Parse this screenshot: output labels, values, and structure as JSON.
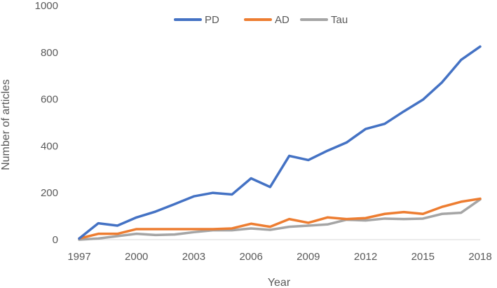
{
  "chart_data": {
    "type": "line",
    "title": "",
    "xlabel": "Year",
    "ylabel": "Number of articles",
    "xlim": [
      1997,
      2018
    ],
    "ylim": [
      0,
      1000
    ],
    "x_ticks": [
      1997,
      2000,
      2003,
      2006,
      2009,
      2012,
      2015,
      2018
    ],
    "y_ticks": [
      0,
      200,
      400,
      600,
      800,
      1000
    ],
    "x": [
      1997,
      1998,
      1999,
      2000,
      2001,
      2002,
      2003,
      2004,
      2005,
      2006,
      2007,
      2008,
      2009,
      2010,
      2011,
      2012,
      2013,
      2014,
      2015,
      2016,
      2017,
      2018
    ],
    "grid": false,
    "legend_position": "top",
    "series": [
      {
        "name": "PD",
        "color": "#4472C4",
        "values": [
          5,
          70,
          60,
          95,
          120,
          152,
          185,
          200,
          193,
          262,
          225,
          358,
          340,
          380,
          415,
          473,
          495,
          548,
          598,
          672,
          768,
          825
        ]
      },
      {
        "name": "AD",
        "color": "#ED7D31",
        "values": [
          5,
          25,
          25,
          45,
          45,
          45,
          45,
          45,
          48,
          68,
          55,
          88,
          72,
          95,
          88,
          92,
          110,
          118,
          110,
          140,
          162,
          175
        ]
      },
      {
        "name": "Tau",
        "color": "#A5A5A5",
        "values": [
          0,
          5,
          15,
          25,
          20,
          22,
          32,
          40,
          40,
          48,
          42,
          55,
          60,
          65,
          85,
          82,
          90,
          88,
          90,
          110,
          115,
          172
        ]
      }
    ]
  }
}
